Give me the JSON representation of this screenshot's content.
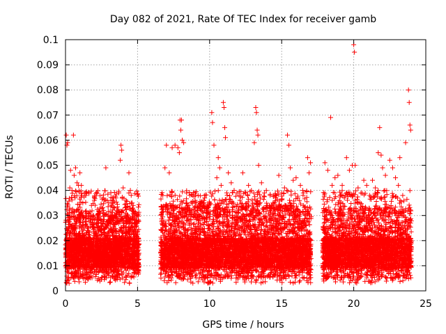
{
  "chart_data": {
    "type": "scatter",
    "title": "Day 082 of 2021, Rate Of TEC Index for receiver gamb",
    "xlabel": "GPS time / hours",
    "ylabel": "ROTI / TECUs",
    "xlim": [
      0,
      25
    ],
    "ylim": [
      0,
      0.1
    ],
    "xticks": [
      0,
      5,
      10,
      15,
      20,
      25
    ],
    "xtick_labels": [
      "0",
      "5",
      "10",
      "15",
      "20",
      "25"
    ],
    "yticks": [
      0,
      0.01,
      0.02,
      0.03,
      0.04,
      0.05,
      0.06,
      0.07,
      0.08,
      0.09,
      0.1
    ],
    "ytick_labels": [
      "0",
      "0.01",
      "0.02",
      "0.03",
      "0.04",
      "0.05",
      "0.06",
      "0.07",
      "0.08",
      "0.09",
      "0.1"
    ],
    "grid": true,
    "marker": "+",
    "marker_color": "#ff0000",
    "series": [
      {
        "name": "ROTI",
        "points": [
          [
            0.05,
            0.062
          ],
          [
            0.1,
            0.058
          ],
          [
            0.15,
            0.059
          ],
          [
            0.2,
            0.005
          ],
          [
            0.25,
            0.003
          ],
          [
            0.3,
            0.041
          ],
          [
            0.35,
            0.048
          ],
          [
            0.45,
            0.04
          ],
          [
            0.55,
            0.062
          ],
          [
            0.6,
            0.046
          ],
          [
            0.7,
            0.049
          ],
          [
            0.8,
            0.043
          ],
          [
            0.9,
            0.042
          ],
          [
            1.0,
            0.047
          ],
          [
            1.1,
            0.042
          ],
          [
            1.2,
            0.035
          ],
          [
            1.4,
            0.038
          ],
          [
            1.6,
            0.031
          ],
          [
            1.8,
            0.034
          ],
          [
            2.0,
            0.036
          ],
          [
            2.2,
            0.029
          ],
          [
            2.4,
            0.033
          ],
          [
            2.6,
            0.031
          ],
          [
            2.8,
            0.049
          ],
          [
            3.0,
            0.035
          ],
          [
            3.2,
            0.034
          ],
          [
            3.4,
            0.033
          ],
          [
            3.5,
            0.037
          ],
          [
            3.7,
            0.039
          ],
          [
            3.8,
            0.052
          ],
          [
            3.85,
            0.058
          ],
          [
            3.9,
            0.056
          ],
          [
            4.0,
            0.041
          ],
          [
            4.2,
            0.036
          ],
          [
            4.4,
            0.047
          ],
          [
            4.5,
            0.04
          ],
          [
            4.7,
            0.034
          ],
          [
            4.8,
            0.031
          ],
          [
            4.95,
            0.02
          ],
          [
            6.8,
            0.033
          ],
          [
            6.9,
            0.049
          ],
          [
            7.0,
            0.058
          ],
          [
            7.2,
            0.047
          ],
          [
            7.4,
            0.057
          ],
          [
            7.6,
            0.058
          ],
          [
            7.8,
            0.057
          ],
          [
            7.9,
            0.055
          ],
          [
            7.95,
            0.068
          ],
          [
            8.0,
            0.064
          ],
          [
            8.05,
            0.068
          ],
          [
            8.1,
            0.06
          ],
          [
            8.2,
            0.059
          ],
          [
            8.4,
            0.039
          ],
          [
            8.6,
            0.032
          ],
          [
            8.8,
            0.038
          ],
          [
            9.0,
            0.036
          ],
          [
            9.2,
            0.033
          ],
          [
            9.4,
            0.035
          ],
          [
            9.6,
            0.036
          ],
          [
            9.8,
            0.031
          ],
          [
            10.0,
            0.035
          ],
          [
            10.15,
            0.071
          ],
          [
            10.2,
            0.067
          ],
          [
            10.3,
            0.058
          ],
          [
            10.5,
            0.045
          ],
          [
            10.6,
            0.053
          ],
          [
            10.7,
            0.049
          ],
          [
            10.8,
            0.042
          ],
          [
            10.95,
            0.075
          ],
          [
            11.0,
            0.073
          ],
          [
            11.05,
            0.065
          ],
          [
            11.1,
            0.061
          ],
          [
            11.3,
            0.047
          ],
          [
            11.5,
            0.043
          ],
          [
            11.7,
            0.04
          ],
          [
            11.9,
            0.039
          ],
          [
            12.1,
            0.036
          ],
          [
            12.3,
            0.047
          ],
          [
            12.5,
            0.039
          ],
          [
            12.7,
            0.042
          ],
          [
            12.9,
            0.04
          ],
          [
            13.1,
            0.059
          ],
          [
            13.2,
            0.073
          ],
          [
            13.25,
            0.071
          ],
          [
            13.3,
            0.064
          ],
          [
            13.35,
            0.062
          ],
          [
            13.4,
            0.05
          ],
          [
            13.6,
            0.043
          ],
          [
            13.8,
            0.039
          ],
          [
            14.0,
            0.034
          ],
          [
            14.2,
            0.038
          ],
          [
            14.4,
            0.035
          ],
          [
            14.6,
            0.037
          ],
          [
            14.8,
            0.046
          ],
          [
            15.0,
            0.039
          ],
          [
            15.2,
            0.041
          ],
          [
            15.4,
            0.062
          ],
          [
            15.5,
            0.058
          ],
          [
            15.6,
            0.049
          ],
          [
            15.8,
            0.044
          ],
          [
            16.0,
            0.045
          ],
          [
            16.3,
            0.042
          ],
          [
            16.5,
            0.039
          ],
          [
            16.8,
            0.053
          ],
          [
            16.9,
            0.047
          ],
          [
            17.0,
            0.051
          ],
          [
            18.0,
            0.051
          ],
          [
            18.2,
            0.048
          ],
          [
            18.4,
            0.069
          ],
          [
            18.5,
            0.042
          ],
          [
            18.7,
            0.045
          ],
          [
            18.9,
            0.046
          ],
          [
            19.2,
            0.042
          ],
          [
            19.4,
            0.038
          ],
          [
            19.5,
            0.053
          ],
          [
            19.7,
            0.048
          ],
          [
            19.9,
            0.05
          ],
          [
            20.0,
            0.098
          ],
          [
            20.05,
            0.095
          ],
          [
            20.1,
            0.05
          ],
          [
            20.3,
            0.041
          ],
          [
            20.5,
            0.039
          ],
          [
            20.7,
            0.044
          ],
          [
            20.9,
            0.042
          ],
          [
            21.1,
            0.038
          ],
          [
            21.3,
            0.044
          ],
          [
            21.5,
            0.041
          ],
          [
            21.7,
            0.055
          ],
          [
            21.8,
            0.065
          ],
          [
            21.9,
            0.054
          ],
          [
            22.0,
            0.049
          ],
          [
            22.2,
            0.046
          ],
          [
            22.5,
            0.052
          ],
          [
            22.7,
            0.049
          ],
          [
            22.9,
            0.045
          ],
          [
            23.1,
            0.042
          ],
          [
            23.2,
            0.053
          ],
          [
            23.4,
            0.038
          ],
          [
            23.6,
            0.059
          ],
          [
            23.8,
            0.08
          ],
          [
            23.85,
            0.075
          ],
          [
            23.9,
            0.066
          ],
          [
            23.95,
            0.064
          ]
        ]
      }
    ],
    "dense_segments": [
      {
        "x_start": 0.0,
        "x_end": 5.1,
        "base_low": 0.005,
        "base_high": 0.032,
        "count": 2600
      },
      {
        "x_start": 6.6,
        "x_end": 17.05,
        "base_low": 0.005,
        "base_high": 0.034,
        "count": 5200
      },
      {
        "x_start": 17.85,
        "x_end": 24.0,
        "base_low": 0.005,
        "base_high": 0.033,
        "count": 3100
      }
    ]
  }
}
